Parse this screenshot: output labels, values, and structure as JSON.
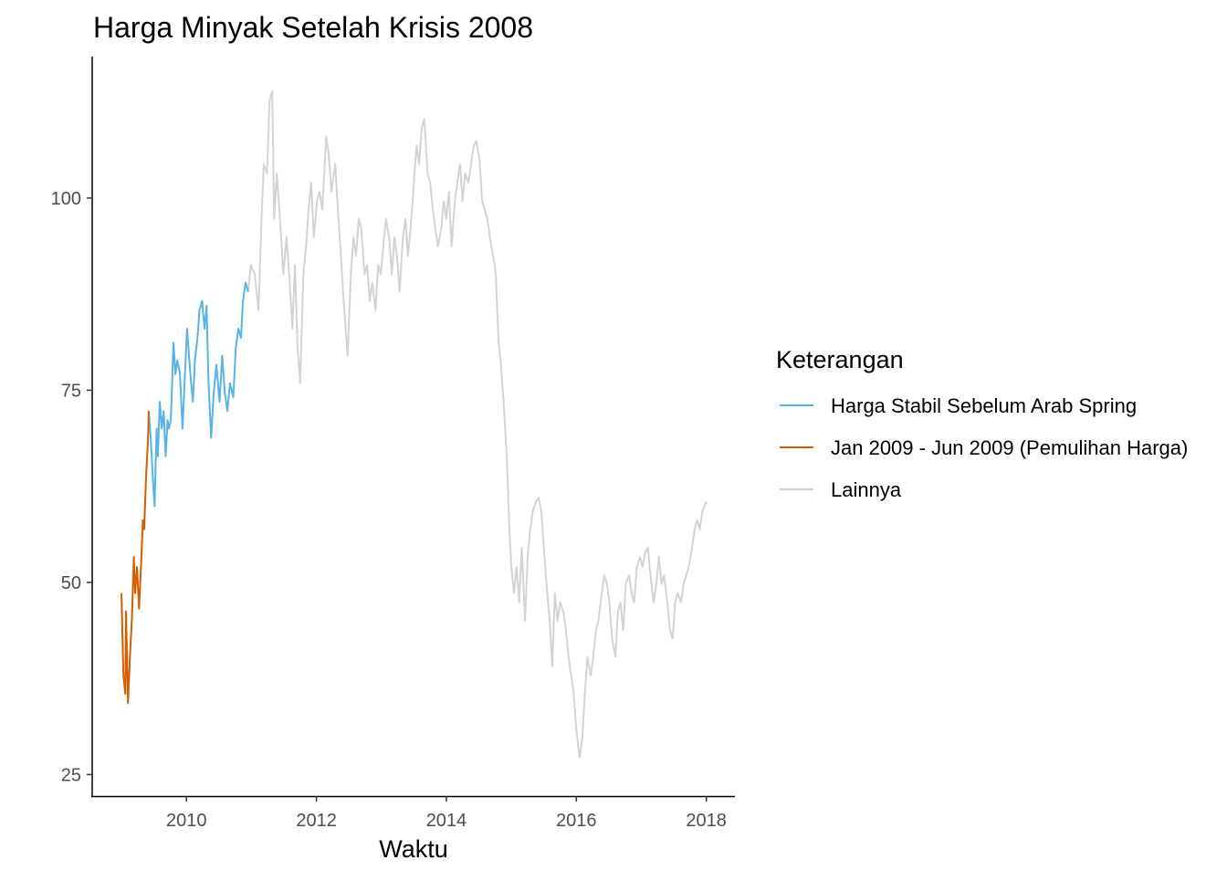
{
  "chart_data": {
    "type": "line",
    "title": "Harga Minyak Setelah Krisis 2008",
    "xlabel": "Waktu",
    "ylabel": "",
    "xlim": [
      2008.55,
      2018.44
    ],
    "ylim": [
      22.2,
      118.4
    ],
    "x_ticks": [
      2010,
      2012,
      2014,
      2016,
      2018
    ],
    "x_tick_labels": [
      "2010",
      "2012",
      "2014",
      "2016",
      "2018"
    ],
    "y_ticks": [
      25,
      50,
      75,
      100
    ],
    "y_tick_labels": [
      "25",
      "50",
      "75",
      "100"
    ],
    "grid": false,
    "legend": {
      "title": "Keterangan",
      "placement": "right",
      "entries": [
        {
          "label": "Harga Stabil Sebelum Arab Spring",
          "color": "#56B4E9"
        },
        {
          "label": "Jan 2009 - Jun 2009 (Pemulihan Harga)",
          "color": "#D55E00"
        },
        {
          "label": "Lainnya",
          "color": "#D3D3D3"
        }
      ]
    },
    "series": [
      {
        "name": "Jan 2009 - Jun 2009 (Pemulihan Harga)",
        "color": "#D55E00",
        "x": [
          2009.0,
          2009.03,
          2009.06,
          2009.07,
          2009.1,
          2009.13,
          2009.16,
          2009.19,
          2009.21,
          2009.24,
          2009.27,
          2009.3,
          2009.33,
          2009.35,
          2009.38,
          2009.41,
          2009.42
        ],
        "y": [
          48.6,
          37.9,
          35.5,
          46.2,
          34.3,
          40.3,
          45.0,
          53.3,
          48.6,
          52.0,
          46.6,
          52.0,
          58.1,
          56.9,
          64.0,
          68.8,
          72.3
        ]
      },
      {
        "name": "Harga Stabil Sebelum Arab Spring",
        "color": "#56B4E9",
        "x": [
          2009.42,
          2009.45,
          2009.48,
          2009.51,
          2009.54,
          2009.56,
          2009.59,
          2009.62,
          2009.65,
          2009.68,
          2009.71,
          2009.73,
          2009.76,
          2009.8,
          2009.83,
          2009.86,
          2009.9,
          2009.94,
          2009.99,
          2010.01,
          2010.06,
          2010.1,
          2010.13,
          2010.17,
          2010.2,
          2010.24,
          2010.28,
          2010.31,
          2010.34,
          2010.38,
          2010.42,
          2010.46,
          2010.51,
          2010.55,
          2010.59,
          2010.63,
          2010.67,
          2010.72,
          2010.76,
          2010.8,
          2010.84,
          2010.87,
          2010.91,
          2010.95
        ],
        "y": [
          72.3,
          68.8,
          64.0,
          59.9,
          70.0,
          66.4,
          73.5,
          70.0,
          72.3,
          66.4,
          71.1,
          70.0,
          71.1,
          81.2,
          77.1,
          78.9,
          77.1,
          70.0,
          79.5,
          83.0,
          77.1,
          73.5,
          78.9,
          81.8,
          85.4,
          86.6,
          83.0,
          86.0,
          75.9,
          68.8,
          74.7,
          78.3,
          73.5,
          79.5,
          74.7,
          72.3,
          75.9,
          74.1,
          80.6,
          83.0,
          81.8,
          86.6,
          89.0,
          87.8
        ]
      },
      {
        "name": "Lainnya",
        "color": "#D3D3D3",
        "x": [
          2010.95,
          2010.99,
          2011.05,
          2011.11,
          2011.15,
          2011.19,
          2011.24,
          2011.28,
          2011.32,
          2011.35,
          2011.39,
          2011.43,
          2011.49,
          2011.54,
          2011.59,
          2011.63,
          2011.67,
          2011.71,
          2011.75,
          2011.8,
          2011.84,
          2011.88,
          2011.92,
          2011.96,
          2012.01,
          2012.05,
          2012.09,
          2012.15,
          2012.19,
          2012.23,
          2012.29,
          2012.33,
          2012.37,
          2012.41,
          2012.46,
          2012.48,
          2012.53,
          2012.57,
          2012.61,
          2012.65,
          2012.69,
          2012.74,
          2012.78,
          2012.82,
          2012.86,
          2012.91,
          2012.95,
          2012.99,
          2013.03,
          2013.07,
          2013.12,
          2013.16,
          2013.2,
          2013.24,
          2013.28,
          2013.33,
          2013.37,
          2013.41,
          2013.45,
          2013.49,
          2013.54,
          2013.58,
          2013.62,
          2013.66,
          2013.71,
          2013.75,
          2013.79,
          2013.83,
          2013.87,
          2013.92,
          2013.96,
          2014.0,
          2014.04,
          2014.08,
          2014.13,
          2014.17,
          2014.21,
          2014.25,
          2014.29,
          2014.34,
          2014.38,
          2014.42,
          2014.46,
          2014.51,
          2014.55,
          2014.59,
          2014.63,
          2014.67,
          2014.72,
          2014.76,
          2014.8,
          2014.84,
          2014.88,
          2014.93,
          2014.97,
          2015.0,
          2015.04,
          2015.08,
          2015.12,
          2015.16,
          2015.21,
          2015.25,
          2015.29,
          2015.33,
          2015.38,
          2015.42,
          2015.46,
          2015.5,
          2015.54,
          2015.59,
          2015.63,
          2015.67,
          2015.71,
          2015.75,
          2015.8,
          2015.84,
          2015.88,
          2015.92,
          2015.96,
          2016.0,
          2016.05,
          2016.09,
          2016.13,
          2016.17,
          2016.22,
          2016.26,
          2016.3,
          2016.34,
          2016.39,
          2016.43,
          2016.47,
          2016.51,
          2016.55,
          2016.6,
          2016.64,
          2016.68,
          2016.72,
          2016.76,
          2016.81,
          2016.85,
          2016.89,
          2016.93,
          2016.98,
          2017.02,
          2017.06,
          2017.1,
          2017.14,
          2017.19,
          2017.23,
          2017.27,
          2017.31,
          2017.35,
          2017.4,
          2017.44,
          2017.48,
          2017.52,
          2017.56,
          2017.61,
          2017.65,
          2017.69,
          2017.73,
          2017.78,
          2017.82,
          2017.86,
          2017.9,
          2017.94,
          2018.0
        ],
        "y": [
          87.8,
          91.3,
          90.1,
          85.4,
          96.1,
          104.4,
          103.2,
          112.7,
          113.9,
          97.3,
          103.2,
          98.5,
          90.1,
          94.9,
          89.0,
          83.0,
          91.3,
          80.6,
          75.9,
          90.1,
          93.7,
          98.5,
          102.0,
          94.9,
          99.6,
          100.8,
          98.5,
          108.0,
          105.6,
          100.8,
          104.4,
          98.5,
          93.7,
          87.8,
          81.8,
          79.5,
          90.1,
          94.9,
          92.5,
          97.3,
          96.1,
          90.1,
          91.3,
          86.6,
          89.0,
          85.4,
          91.3,
          90.1,
          93.7,
          97.3,
          94.9,
          90.1,
          94.9,
          92.5,
          87.8,
          94.9,
          97.3,
          92.5,
          96.1,
          100.8,
          106.8,
          104.4,
          109.1,
          110.3,
          103.2,
          102.0,
          98.5,
          96.1,
          93.7,
          96.1,
          99.6,
          97.3,
          100.8,
          93.7,
          99.6,
          102.0,
          104.4,
          99.6,
          103.2,
          102.0,
          104.4,
          106.8,
          107.4,
          105.0,
          99.6,
          98.5,
          97.3,
          94.9,
          92.5,
          90.1,
          81.8,
          78.3,
          73.5,
          66.4,
          56.9,
          52.0,
          48.6,
          52.0,
          47.4,
          54.5,
          45.0,
          53.3,
          56.9,
          59.3,
          60.5,
          61.0,
          59.3,
          54.5,
          49.8,
          45.0,
          39.1,
          48.6,
          45.0,
          47.4,
          46.2,
          43.8,
          40.3,
          37.9,
          35.5,
          30.8,
          27.2,
          29.6,
          35.5,
          40.3,
          37.9,
          40.3,
          43.8,
          45.0,
          48.6,
          50.9,
          49.8,
          47.4,
          42.7,
          40.3,
          46.2,
          47.4,
          43.8,
          49.8,
          50.9,
          48.6,
          47.4,
          52.0,
          53.3,
          52.0,
          53.9,
          54.5,
          50.9,
          47.4,
          49.8,
          53.3,
          49.8,
          50.9,
          47.4,
          43.8,
          42.7,
          47.4,
          48.6,
          47.4,
          49.8,
          50.9,
          52.0,
          54.5,
          56.9,
          58.1,
          56.9,
          59.3,
          60.5
        ]
      }
    ]
  }
}
